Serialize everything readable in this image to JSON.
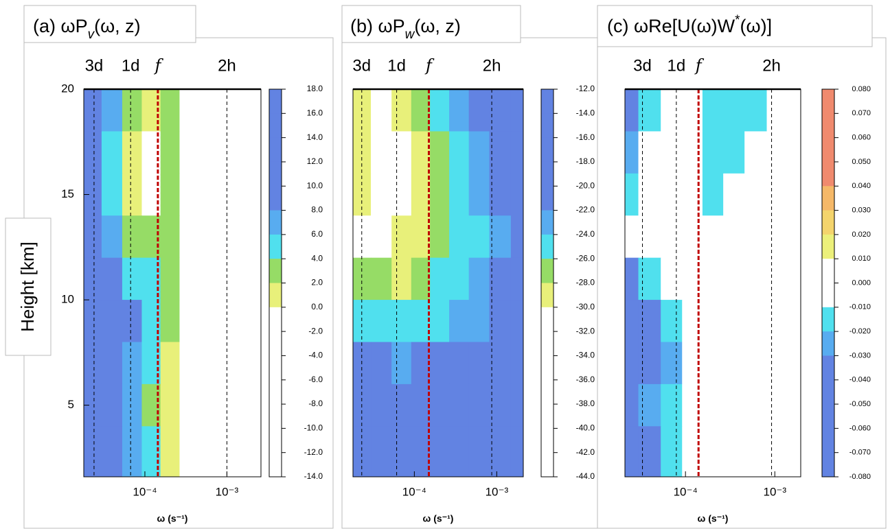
{
  "chart_data": [
    {
      "type": "contour",
      "title_parts": [
        {
          "text": "(a) ωP"
        },
        {
          "text": "v",
          "style": "sub"
        },
        {
          "text": "(ω, z)"
        }
      ],
      "ylabel": "Height [km]",
      "xlabel": "ω (s⁻¹)",
      "xscale": "log",
      "xlim": [
        1.8e-05,
        0.0026
      ],
      "ylim": [
        1.6,
        20
      ],
      "xticks": [
        {
          "value": 0.0001,
          "label": "10⁻⁴"
        },
        {
          "value": 0.001,
          "label": "10⁻³"
        }
      ],
      "yticks": [
        5,
        10,
        15,
        20
      ],
      "period_markers": [
        {
          "label": "3d",
          "value": 2.4e-05,
          "color": "#000000"
        },
        {
          "label": "1d",
          "value": 6.7e-05,
          "color": "#000000"
        },
        {
          "label": "f",
          "value": 0.000144,
          "color": "#c00000"
        },
        {
          "label": "2h",
          "value": 0.001,
          "color": "#000000"
        }
      ],
      "x": [
        2.2e-05,
        4e-05,
        7e-05,
        0.00012,
        0.0002,
        0.00035,
        0.0006,
        0.0011,
        0.002
      ],
      "y": [
        19,
        17,
        15,
        13,
        11,
        9,
        7,
        5,
        3
      ],
      "z": [
        [
          9,
          7,
          3,
          1,
          3,
          -1,
          -2,
          -3,
          -3
        ],
        [
          9,
          5,
          1,
          -1,
          3,
          -2,
          -3,
          -3,
          -3
        ],
        [
          9,
          5,
          1,
          -1,
          3,
          -2,
          -4,
          -4,
          -3
        ],
        [
          9,
          6,
          3,
          2,
          3,
          -1,
          -3,
          -3,
          -3
        ],
        [
          10,
          8,
          5,
          4,
          2,
          -1,
          -2,
          -3,
          -3
        ],
        [
          11,
          10,
          9,
          5,
          2,
          -1,
          -3,
          -3,
          -3
        ],
        [
          10,
          9,
          7,
          4,
          1,
          -1,
          -2,
          -3,
          -3
        ],
        [
          9,
          8,
          6,
          3,
          1,
          -1,
          -2,
          -3,
          -3
        ],
        [
          9,
          8,
          6,
          4,
          1,
          -1,
          -2,
          -3,
          -3
        ]
      ],
      "colorbar": {
        "ticks": [
          {
            "value": 18,
            "label": "18.0"
          },
          {
            "value": 16,
            "label": "16.0"
          },
          {
            "value": 14,
            "label": "14.0"
          },
          {
            "value": 12,
            "label": "12.0"
          },
          {
            "value": 10,
            "label": "10.0"
          },
          {
            "value": 8,
            "label": "8.0"
          },
          {
            "value": 6,
            "label": "6.0"
          },
          {
            "value": 4,
            "label": "4.0"
          },
          {
            "value": 2,
            "label": "2.0"
          },
          {
            "value": 0,
            "label": "0.0"
          },
          {
            "value": -2,
            "label": "-2.0"
          },
          {
            "value": -4,
            "label": "-4.0"
          },
          {
            "value": -6,
            "label": "-6.0"
          },
          {
            "value": -8,
            "label": "-8.0"
          },
          {
            "value": -10,
            "label": "-10.0"
          },
          {
            "value": -12,
            "label": "-12.0"
          },
          {
            "value": -14,
            "label": "-14.0"
          }
        ],
        "colors": [
          "#6283e2",
          "#6283e2",
          "#6283e2",
          "#6283e2",
          "#6283e2",
          "#58acf0",
          "#50e0ee",
          "#96dc66",
          "#e8f07a",
          "#ffffff",
          "#ffffff",
          "#ffffff",
          "#ffffff",
          "#ffffff",
          "#ffffff",
          "#ffffff"
        ]
      }
    },
    {
      "type": "contour",
      "title_parts": [
        {
          "text": "(b) ωP"
        },
        {
          "text": "w",
          "style": "sub"
        },
        {
          "text": "(ω, z)"
        }
      ],
      "xlabel": "ω (s⁻¹)",
      "xscale": "log",
      "xlim": [
        1.8e-05,
        0.0021
      ],
      "ylim": [
        1.6,
        20
      ],
      "xticks": [
        {
          "value": 0.0001,
          "label": "10⁻⁴"
        },
        {
          "value": 0.001,
          "label": "10⁻³"
        }
      ],
      "period_markers": [
        {
          "label": "3d",
          "value": 2.3e-05,
          "color": "#000000"
        },
        {
          "label": "1d",
          "value": 6.1e-05,
          "color": "#000000"
        },
        {
          "label": "f",
          "value": 0.00015,
          "color": "#c00000"
        },
        {
          "label": "2h",
          "value": 0.00087,
          "color": "#000000"
        }
      ],
      "x": [
        2.2e-05,
        4e-05,
        7e-05,
        0.00012,
        0.0002,
        0.00035,
        0.0006,
        0.0011,
        0.002
      ],
      "y": [
        19,
        17,
        15,
        13,
        11,
        9,
        7,
        5,
        3
      ],
      "z": [
        [
          -29,
          -31,
          -29,
          -28,
          -25,
          -23,
          -22,
          -21,
          -20
        ],
        [
          -30,
          -31,
          -31,
          -29,
          -27,
          -25,
          -23,
          -22,
          -21
        ],
        [
          -29,
          -31,
          -31,
          -29,
          -27,
          -25,
          -24,
          -22,
          -21
        ],
        [
          -31,
          -31,
          -30,
          -29,
          -27,
          -26,
          -25,
          -23,
          -21
        ],
        [
          -27,
          -28,
          -29,
          -27,
          -26,
          -25,
          -24,
          -22,
          -21
        ],
        [
          -25,
          -25,
          -26,
          -25,
          -25,
          -24,
          -23,
          -21,
          -20
        ],
        [
          -22,
          -21,
          -23,
          -21,
          -21,
          -21,
          -20,
          -20,
          -19
        ],
        [
          -21,
          -21,
          -21,
          -20,
          -20,
          -20,
          -20,
          -20,
          -19
        ],
        [
          -20,
          -20,
          -20,
          -20,
          -20,
          -19,
          -19,
          -19,
          -19
        ]
      ],
      "colorbar": {
        "ticks": [
          {
            "value": -12,
            "label": "-12.0"
          },
          {
            "value": -14,
            "label": "-14.0"
          },
          {
            "value": -16,
            "label": "-16.0"
          },
          {
            "value": -18,
            "label": "-18.0"
          },
          {
            "value": -20,
            "label": "-20.0"
          },
          {
            "value": -22,
            "label": "-22.0"
          },
          {
            "value": -24,
            "label": "-24.0"
          },
          {
            "value": -26,
            "label": "-26.0"
          },
          {
            "value": -28,
            "label": "-28.0"
          },
          {
            "value": -30,
            "label": "-30.0"
          },
          {
            "value": -32,
            "label": "-32.0"
          },
          {
            "value": -34,
            "label": "-34.0"
          },
          {
            "value": -36,
            "label": "-36.0"
          },
          {
            "value": -38,
            "label": "-38.0"
          },
          {
            "value": -40,
            "label": "-40.0"
          },
          {
            "value": -42,
            "label": "-42.0"
          },
          {
            "value": -44,
            "label": "-44.0"
          }
        ],
        "colors": [
          "#6283e2",
          "#6283e2",
          "#6283e2",
          "#6283e2",
          "#6283e2",
          "#58acf0",
          "#50e0ee",
          "#96dc66",
          "#e8f07a",
          "#ffffff",
          "#ffffff",
          "#ffffff",
          "#ffffff",
          "#ffffff",
          "#ffffff",
          "#ffffff"
        ]
      }
    },
    {
      "type": "contour",
      "title_parts": [
        {
          "text": "(c) ωRe[U(ω)W"
        },
        {
          "text": "*",
          "style": "super"
        },
        {
          "text": "(ω)]"
        }
      ],
      "xlabel": "ω (s⁻¹)",
      "xscale": "log",
      "xlim": [
        2.1e-05,
        0.00195
      ],
      "ylim": [
        1.6,
        20
      ],
      "xticks": [
        {
          "value": 0.0001,
          "label": "10⁻⁴"
        },
        {
          "value": 0.001,
          "label": "10⁻³"
        }
      ],
      "period_markers": [
        {
          "label": "3d",
          "value": 3.3e-05,
          "color": "#000000"
        },
        {
          "label": "1d",
          "value": 7.9e-05,
          "color": "#000000"
        },
        {
          "label": "f",
          "value": 0.00014,
          "color": "#c00000"
        },
        {
          "label": "2h",
          "value": 0.00092,
          "color": "#000000"
        }
      ],
      "x": [
        2.2e-05,
        4e-05,
        7e-05,
        0.00012,
        0.0002,
        0.00035,
        0.0006,
        0.0011,
        0.002
      ],
      "y": [
        19,
        17,
        15,
        13,
        11,
        9,
        7,
        5,
        3
      ],
      "z": [
        [
          -0.04,
          -0.02,
          -0.005,
          0,
          -0.015,
          -0.015,
          -0.015,
          0,
          0
        ],
        [
          -0.03,
          -0.005,
          0,
          0,
          -0.015,
          -0.012,
          -0.005,
          0,
          0
        ],
        [
          -0.015,
          0,
          0,
          0,
          -0.012,
          -0.005,
          0,
          0,
          0
        ],
        [
          -0.005,
          0,
          0,
          0,
          0,
          0,
          0,
          0,
          0
        ],
        [
          -0.035,
          -0.015,
          -0.005,
          0,
          0,
          0,
          0,
          0,
          0
        ],
        [
          -0.05,
          -0.04,
          -0.02,
          -0.005,
          0,
          0,
          0,
          0,
          0
        ],
        [
          -0.04,
          -0.05,
          -0.03,
          -0.01,
          0,
          0,
          0,
          0,
          0
        ],
        [
          -0.04,
          -0.03,
          -0.015,
          0,
          0,
          0,
          0,
          0,
          0
        ],
        [
          -0.05,
          -0.04,
          -0.02,
          0,
          0,
          0,
          0,
          0,
          0
        ]
      ],
      "colorbar": {
        "ticks": [
          {
            "value": 0.08,
            "label": "0.080"
          },
          {
            "value": 0.07,
            "label": "0.070"
          },
          {
            "value": 0.06,
            "label": "0.060"
          },
          {
            "value": 0.05,
            "label": "0.050"
          },
          {
            "value": 0.04,
            "label": "0.040"
          },
          {
            "value": 0.03,
            "label": "0.030"
          },
          {
            "value": 0.02,
            "label": "0.020"
          },
          {
            "value": 0.01,
            "label": "0.010"
          },
          {
            "value": 0,
            "label": "0.000"
          },
          {
            "value": -0.01,
            "label": "-0.010"
          },
          {
            "value": -0.02,
            "label": "-0.020"
          },
          {
            "value": -0.03,
            "label": "-0.030"
          },
          {
            "value": -0.04,
            "label": "-0.040"
          },
          {
            "value": -0.05,
            "label": "-0.050"
          },
          {
            "value": -0.06,
            "label": "-0.060"
          },
          {
            "value": -0.07,
            "label": "-0.070"
          },
          {
            "value": -0.08,
            "label": "-0.080"
          }
        ],
        "colors": [
          "#f08a6e",
          "#f08a6e",
          "#f08a6e",
          "#f08a6e",
          "#f5b868",
          "#f4d46c",
          "#ecf07a",
          "#ffffff",
          "#ffffff",
          "#50e0ee",
          "#58acf0",
          "#6283e2",
          "#6283e2",
          "#6283e2",
          "#6283e2",
          "#6283e2"
        ]
      }
    }
  ]
}
